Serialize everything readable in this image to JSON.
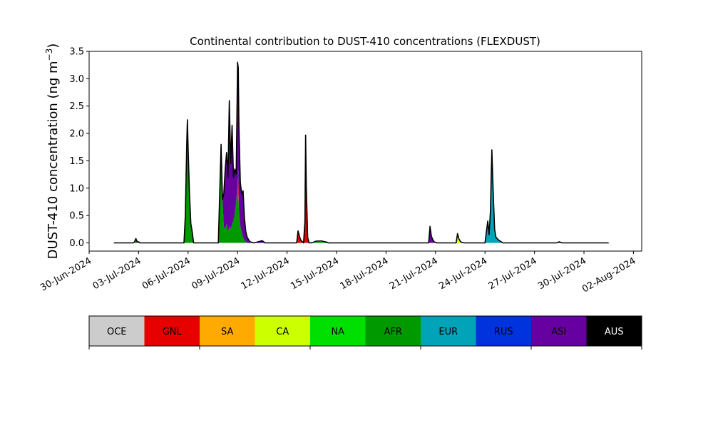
{
  "chart_data": {
    "type": "area",
    "stacked": true,
    "title": "Continental contribution to DUST-410 concentrations (FLEXDUST)",
    "ylabel": "DUST-410 concentration (ng m",
    "ylabel_sup": "−3",
    "ylabel_close": ")",
    "xlabel": "",
    "ylim": [
      -0.15,
      3.5
    ],
    "xlim": [
      "2024-06-30T00:00",
      "2024-08-02T12:00"
    ],
    "yticks": [
      "0.0",
      "0.5",
      "1.0",
      "1.5",
      "2.0",
      "2.5",
      "3.0",
      "3.5"
    ],
    "xticks": [
      "30-Jun-2024",
      "03-Jul-2024",
      "06-Jul-2024",
      "09-Jul-2024",
      "12-Jul-2024",
      "15-Jul-2024",
      "18-Jul-2024",
      "21-Jul-2024",
      "24-Jul-2024",
      "27-Jul-2024",
      "30-Jul-2024",
      "02-Aug-2024"
    ],
    "grid": false,
    "total_line_color": "#000000",
    "legend": {
      "placement": "bottom colorbar",
      "labels": [
        "OCE",
        "GNL",
        "SA",
        "CA",
        "NA",
        "AFR",
        "EUR",
        "RUS",
        "ASI",
        "AUS"
      ],
      "colors": [
        "#cccccc",
        "#e60000",
        "#ffaa00",
        "#ccff00",
        "#00e000",
        "#009900",
        "#00a3b8",
        "#0033dd",
        "#6600a0",
        "#000000"
      ],
      "label_colors": [
        "#000000",
        "#000000",
        "#000000",
        "#000000",
        "#000000",
        "#000000",
        "#000000",
        "#000000",
        "#000000",
        "#ffffff"
      ]
    },
    "series_order": [
      "AFR",
      "GNL",
      "CA",
      "NA",
      "EUR",
      "RUS",
      "ASI"
    ],
    "series_colors": {
      "AFR": "#009900",
      "GNL": "#e60000",
      "CA": "#ccff00",
      "NA": "#00e000",
      "EUR": "#00a3b8",
      "RUS": "#0033dd",
      "ASI": "#6600a0"
    },
    "series": [
      {
        "name": "AFR",
        "values": [
          [
            "2024-07-01T12:00",
            0
          ],
          [
            "2024-07-02T18:00",
            0
          ],
          [
            "2024-07-02T20:00",
            0.05
          ],
          [
            "2024-07-02T22:00",
            0
          ],
          [
            "2024-07-05T18:00",
            0
          ],
          [
            "2024-07-05T20:00",
            0.5
          ],
          [
            "2024-07-05T22:00",
            1.8
          ],
          [
            "2024-07-05T23:00",
            2.25
          ],
          [
            "2024-07-06T00:00",
            1.75
          ],
          [
            "2024-07-06T02:00",
            0.9
          ],
          [
            "2024-07-06T04:00",
            0.35
          ],
          [
            "2024-07-06T06:00",
            0.2
          ],
          [
            "2024-07-06T08:00",
            0
          ],
          [
            "2024-07-07T20:00",
            0
          ],
          [
            "2024-07-07T22:00",
            0.9
          ],
          [
            "2024-07-08T00:00",
            1.8
          ],
          [
            "2024-07-08T02:00",
            0.8
          ],
          [
            "2024-07-08T04:00",
            0.3
          ],
          [
            "2024-07-08T06:00",
            0.25
          ],
          [
            "2024-07-08T08:00",
            0.35
          ],
          [
            "2024-07-08T10:00",
            0.2
          ],
          [
            "2024-07-08T12:00",
            0.3
          ],
          [
            "2024-07-08T14:00",
            0.25
          ],
          [
            "2024-07-08T16:00",
            0.35
          ],
          [
            "2024-07-08T18:00",
            0.4
          ],
          [
            "2024-07-08T20:00",
            0.55
          ],
          [
            "2024-07-08T22:00",
            0.75
          ],
          [
            "2024-07-09T00:00",
            1.1
          ],
          [
            "2024-07-09T02:00",
            0.6
          ],
          [
            "2024-07-09T04:00",
            0.3
          ],
          [
            "2024-07-09T06:00",
            0.2
          ],
          [
            "2024-07-09T08:00",
            0.1
          ],
          [
            "2024-07-09T10:00",
            0.05
          ],
          [
            "2024-07-09T12:00",
            0.02
          ],
          [
            "2024-07-09T14:00",
            0
          ],
          [
            "2024-07-13T14:00",
            0
          ],
          [
            "2024-07-13T18:00",
            0.02
          ],
          [
            "2024-07-14T02:00",
            0.02
          ],
          [
            "2024-07-14T10:00",
            0.01
          ],
          [
            "2024-07-14T12:00",
            0
          ],
          [
            "2024-07-31T12:00",
            0
          ]
        ]
      },
      {
        "name": "GNL",
        "values": [
          [
            "2024-07-01T12:00",
            0
          ],
          [
            "2024-07-09T00:00",
            0
          ],
          [
            "2024-07-09T01:00",
            0.35
          ],
          [
            "2024-07-09T02:00",
            0
          ],
          [
            "2024-07-12T14:00",
            0
          ],
          [
            "2024-07-12T16:00",
            0.22
          ],
          [
            "2024-07-12T18:00",
            0.12
          ],
          [
            "2024-07-12T20:00",
            0.05
          ],
          [
            "2024-07-13T00:00",
            0
          ],
          [
            "2024-07-13T02:00",
            0.4
          ],
          [
            "2024-07-13T03:00",
            1.97
          ],
          [
            "2024-07-13T04:00",
            1.0
          ],
          [
            "2024-07-13T06:00",
            0.1
          ],
          [
            "2024-07-13T08:00",
            0
          ],
          [
            "2024-07-31T12:00",
            0
          ]
        ]
      },
      {
        "name": "CA",
        "values": [
          [
            "2024-07-01T12:00",
            0
          ],
          [
            "2024-07-02T16:00",
            0
          ],
          [
            "2024-07-02T20:00",
            0.02
          ],
          [
            "2024-07-03T00:00",
            0
          ],
          [
            "2024-07-13T10:00",
            0
          ],
          [
            "2024-07-13T14:00",
            0.01
          ],
          [
            "2024-07-14T02:00",
            0.015
          ],
          [
            "2024-07-14T12:00",
            0
          ],
          [
            "2024-07-22T06:00",
            0
          ],
          [
            "2024-07-22T08:00",
            0.12
          ],
          [
            "2024-07-22T10:00",
            0.05
          ],
          [
            "2024-07-22T14:00",
            0.01
          ],
          [
            "2024-07-22T18:00",
            0
          ],
          [
            "2024-07-31T12:00",
            0
          ]
        ]
      },
      {
        "name": "NA",
        "values": [
          [
            "2024-07-01T12:00",
            0
          ],
          [
            "2024-07-02T16:00",
            0
          ],
          [
            "2024-07-02T20:00",
            0.01
          ],
          [
            "2024-07-03T00:00",
            0
          ],
          [
            "2024-07-22T06:00",
            0
          ],
          [
            "2024-07-22T08:00",
            0.05
          ],
          [
            "2024-07-22T12:00",
            0
          ],
          [
            "2024-07-31T12:00",
            0
          ]
        ]
      },
      {
        "name": "EUR",
        "values": [
          [
            "2024-07-01T12:00",
            0
          ],
          [
            "2024-07-24T00:00",
            0
          ],
          [
            "2024-07-24T02:00",
            0.2
          ],
          [
            "2024-07-24T04:00",
            0.4
          ],
          [
            "2024-07-24T06:00",
            0.15
          ],
          [
            "2024-07-24T08:00",
            0.6
          ],
          [
            "2024-07-24T09:00",
            1.2
          ],
          [
            "2024-07-24T10:00",
            1.7
          ],
          [
            "2024-07-24T12:00",
            0.9
          ],
          [
            "2024-07-24T14:00",
            0.25
          ],
          [
            "2024-07-24T16:00",
            0.1
          ],
          [
            "2024-07-24T20:00",
            0.05
          ],
          [
            "2024-07-25T02:00",
            0
          ],
          [
            "2024-07-31T12:00",
            0
          ]
        ]
      },
      {
        "name": "RUS",
        "values": [
          [
            "2024-07-01T12:00",
            0
          ],
          [
            "2024-07-09T00:00",
            0
          ],
          [
            "2024-07-09T01:00",
            0.15
          ],
          [
            "2024-07-09T02:00",
            0
          ],
          [
            "2024-07-31T12:00",
            0
          ]
        ]
      },
      {
        "name": "ASI",
        "values": [
          [
            "2024-07-01T12:00",
            0
          ],
          [
            "2024-07-02T22:00",
            0
          ],
          [
            "2024-07-03T00:00",
            0.02
          ],
          [
            "2024-07-03T02:00",
            0
          ],
          [
            "2024-07-08T02:00",
            0
          ],
          [
            "2024-07-08T04:00",
            0.6
          ],
          [
            "2024-07-08T06:00",
            1.1
          ],
          [
            "2024-07-08T08:00",
            1.3
          ],
          [
            "2024-07-08T10:00",
            1.0
          ],
          [
            "2024-07-08T12:00",
            2.3
          ],
          [
            "2024-07-08T14:00",
            1.2
          ],
          [
            "2024-07-08T16:00",
            1.8
          ],
          [
            "2024-07-08T18:00",
            0.8
          ],
          [
            "2024-07-08T20:00",
            0.8
          ],
          [
            "2024-07-08T22:00",
            0.5
          ],
          [
            "2024-07-09T00:00",
            2.2
          ],
          [
            "2024-07-09T02:00",
            1.5
          ],
          [
            "2024-07-09T04:00",
            0.8
          ],
          [
            "2024-07-09T06:00",
            0.7
          ],
          [
            "2024-07-09T08:00",
            0.85
          ],
          [
            "2024-07-09T10:00",
            0.4
          ],
          [
            "2024-07-09T12:00",
            0.18
          ],
          [
            "2024-07-09T14:00",
            0.1
          ],
          [
            "2024-07-09T18:00",
            0.02
          ],
          [
            "2024-07-10T00:00",
            0
          ],
          [
            "2024-07-10T12:00",
            0.04
          ],
          [
            "2024-07-10T16:00",
            0
          ],
          [
            "2024-07-20T14:00",
            0
          ],
          [
            "2024-07-20T16:00",
            0.3
          ],
          [
            "2024-07-20T18:00",
            0.12
          ],
          [
            "2024-07-20T20:00",
            0.06
          ],
          [
            "2024-07-20T22:00",
            0.02
          ],
          [
            "2024-07-21T02:00",
            0
          ],
          [
            "2024-07-28T08:00",
            0
          ],
          [
            "2024-07-28T12:00",
            0.02
          ],
          [
            "2024-07-28T16:00",
            0
          ],
          [
            "2024-07-31T12:00",
            0
          ]
        ]
      }
    ]
  }
}
